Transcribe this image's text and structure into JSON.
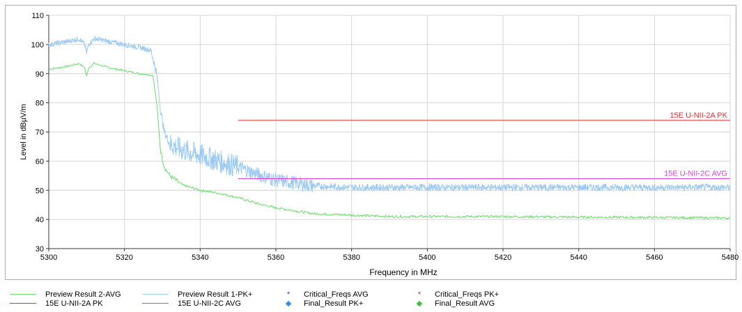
{
  "chart_data": {
    "type": "line",
    "xlabel": "Frequency in MHz",
    "ylabel": "Level in dBµV/m",
    "xlim": [
      5300,
      5480
    ],
    "ylim": [
      30,
      110
    ],
    "x_ticks": [
      5300,
      5320,
      5340,
      5360,
      5380,
      5400,
      5420,
      5440,
      5460,
      5480
    ],
    "y_ticks": [
      30,
      40,
      50,
      60,
      70,
      80,
      90,
      100,
      110
    ],
    "grid": true,
    "series": [
      {
        "name": "Preview Result 2-AVG",
        "color": "#66e066",
        "x": [
          5300,
          5305,
          5308,
          5309.5,
          5310,
          5310.5,
          5312,
          5316,
          5320,
          5324,
          5327.5,
          5328.5,
          5329.5,
          5330.5,
          5332,
          5335,
          5340,
          5345,
          5350,
          5355,
          5360,
          5365,
          5370,
          5380,
          5390,
          5400,
          5420,
          5440,
          5460,
          5480
        ],
        "values": [
          91.5,
          92.5,
          93.5,
          92,
          89,
          92,
          93.5,
          92,
          91,
          90,
          89.5,
          80,
          64,
          58,
          55,
          52,
          50,
          49,
          47.5,
          45.5,
          44,
          43,
          42,
          41.5,
          41,
          41,
          41,
          40.8,
          40.7,
          40.5
        ]
      },
      {
        "name": "Preview Result 1-PK+",
        "color": "#9ccaf5",
        "x": [
          5300,
          5305,
          5308,
          5309.5,
          5310,
          5310.5,
          5312,
          5316,
          5320,
          5324,
          5327,
          5328.5,
          5329.5,
          5330.5,
          5332,
          5335,
          5340,
          5345,
          5350,
          5355,
          5360,
          5365,
          5370,
          5380,
          5390,
          5400,
          5420,
          5440,
          5460,
          5480
        ],
        "values": [
          100,
          101,
          102,
          100,
          97,
          100,
          102,
          101,
          100,
          99,
          98,
          90,
          78,
          70,
          66,
          64,
          62,
          60,
          58,
          55.5,
          53.5,
          52.5,
          51.5,
          51,
          51,
          51,
          51,
          51,
          51,
          51
        ]
      }
    ],
    "limit_lines": [
      {
        "name": "15E U-NII-2A PK",
        "color": "#e03030",
        "x": [
          5350,
          5480
        ],
        "value": 74,
        "label": "15E U-NII-2A PK"
      },
      {
        "name": "15E U-NII-2C AVG",
        "color": "#e040e0",
        "x": [
          5350,
          5480
        ],
        "value": 54,
        "label": "15E U-NII-2C AVG"
      }
    ]
  },
  "legend": {
    "items": [
      {
        "label": "Preview Result 2-AVG",
        "kind": "line",
        "color": "#66e066"
      },
      {
        "label": "Preview Result 1-PK+",
        "kind": "line",
        "color": "#9ccaf5"
      },
      {
        "label": "Critical_Freqs AVG",
        "kind": "marker",
        "glyph": "*",
        "color": "#2040e0"
      },
      {
        "label": "Critical_Freqs PK+",
        "kind": "marker",
        "glyph": "*",
        "color": "#e02020"
      },
      {
        "label": "15E U-NII-2A PK",
        "kind": "line",
        "color": "#e03030"
      },
      {
        "label": "15E U-NII-2C AVG",
        "kind": "line",
        "color": "#e040e0"
      },
      {
        "label": "Final_Result PK+",
        "kind": "marker",
        "glyph": "◆",
        "color": "#3a8fe0"
      },
      {
        "label": "Final_Result AVG",
        "kind": "marker",
        "glyph": "◆",
        "color": "#40c040"
      }
    ]
  }
}
